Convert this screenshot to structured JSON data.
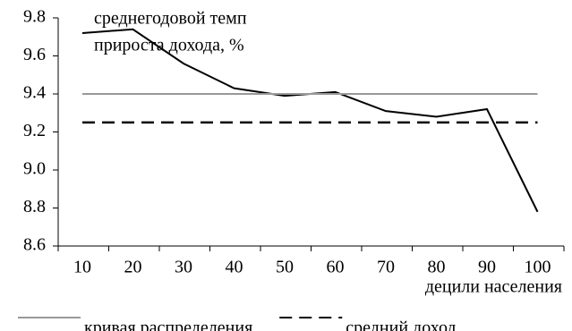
{
  "chart_data": {
    "type": "line",
    "annotation": [
      "среднегодовой темп",
      "прироста дохода, %"
    ],
    "x_label": "децили населения",
    "categories": [
      "10",
      "20",
      "30",
      "40",
      "50",
      "60",
      "70",
      "80",
      "90",
      "100"
    ],
    "series": [
      {
        "color": "#000000",
        "dash": false,
        "values": [
          9.72,
          9.74,
          9.56,
          9.43,
          9.39,
          9.41,
          9.31,
          9.28,
          9.32,
          8.78
        ]
      },
      {
        "name": "кривая распределения",
        "color": "#999999",
        "dash": false,
        "values": [
          9.4,
          9.4,
          9.4,
          9.4,
          9.4,
          9.4,
          9.4,
          9.4,
          9.4,
          9.4
        ]
      },
      {
        "name": "средний доход",
        "color": "#000000",
        "dash": true,
        "values": [
          9.25,
          9.25,
          9.25,
          9.25,
          9.25,
          9.25,
          9.25,
          9.25,
          9.25,
          9.25
        ]
      }
    ],
    "ylim": [
      8.6,
      9.8
    ],
    "yticks": [
      8.6,
      8.8,
      {
        "value": 9,
        "label": "9.0"
      },
      9.2,
      9.4,
      9.6,
      9.8
    ]
  }
}
